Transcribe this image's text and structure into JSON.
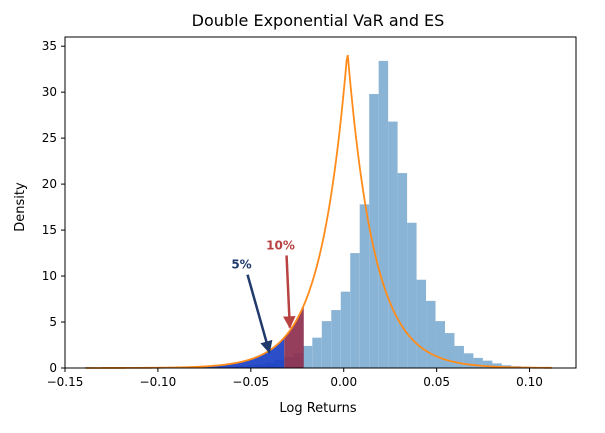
{
  "chart_data": {
    "type": "histogram",
    "title": "Double Exponential VaR and ES",
    "xlabel": "Log Returns",
    "ylabel": "Density",
    "xlim": [
      -0.15,
      0.125
    ],
    "ylim": [
      0,
      36
    ],
    "xticks": [
      -0.15,
      -0.1,
      -0.05,
      0.0,
      0.05,
      0.1
    ],
    "xtick_labels": [
      "−0.15",
      "−0.10",
      "−0.05",
      "0.00",
      "0.05",
      "0.10"
    ],
    "yticks": [
      0,
      5,
      10,
      15,
      20,
      25,
      30,
      35
    ],
    "ytick_labels": [
      "0",
      "5",
      "10",
      "15",
      "20",
      "25",
      "30",
      "35"
    ],
    "grid": false,
    "histogram": {
      "bin_width": 0.0051,
      "bin_start": -0.1393,
      "bin_end": 0.1107,
      "bin_color": "#8ab4d6",
      "densities": [
        0.1,
        0,
        0,
        0,
        0,
        0,
        0,
        0,
        0,
        0,
        0,
        0,
        0,
        0.05,
        0.1,
        0.15,
        0.2,
        0.3,
        0.4,
        0.6,
        0.9,
        1.2,
        1.6,
        2.4,
        3.3,
        5.1,
        6.3,
        8.3,
        12.5,
        17.8,
        29.8,
        33.4,
        26.8,
        21.2,
        15.8,
        9.6,
        7.3,
        5.1,
        3.8,
        2.4,
        1.6,
        1.1,
        0.8,
        0.5,
        0.3,
        0.2,
        0.15,
        0.1,
        0.05,
        0.05
      ]
    },
    "shaded_regions": [
      {
        "name": "5%",
        "from": -0.14,
        "to": -0.032,
        "color": "#1a3fc4"
      },
      {
        "name": "10%",
        "from": -0.032,
        "to": -0.0215,
        "color": "#8c2f4e"
      }
    ],
    "density_curve": {
      "color": "#ff8c1a",
      "mu": 0.002,
      "b": 0.0145,
      "x_range": [
        -0.139,
        0.112
      ]
    },
    "annotations": [
      {
        "text": "5%",
        "text_x": -0.055,
        "text_y": 10.8,
        "arrow_to_x": -0.04,
        "arrow_to_y": 1.7,
        "color": "#1f3a6b"
      },
      {
        "text": "10%",
        "text_x": -0.034,
        "text_y": 12.9,
        "arrow_to_x": -0.029,
        "arrow_to_y": 4.4,
        "color": "#b84242"
      }
    ]
  }
}
